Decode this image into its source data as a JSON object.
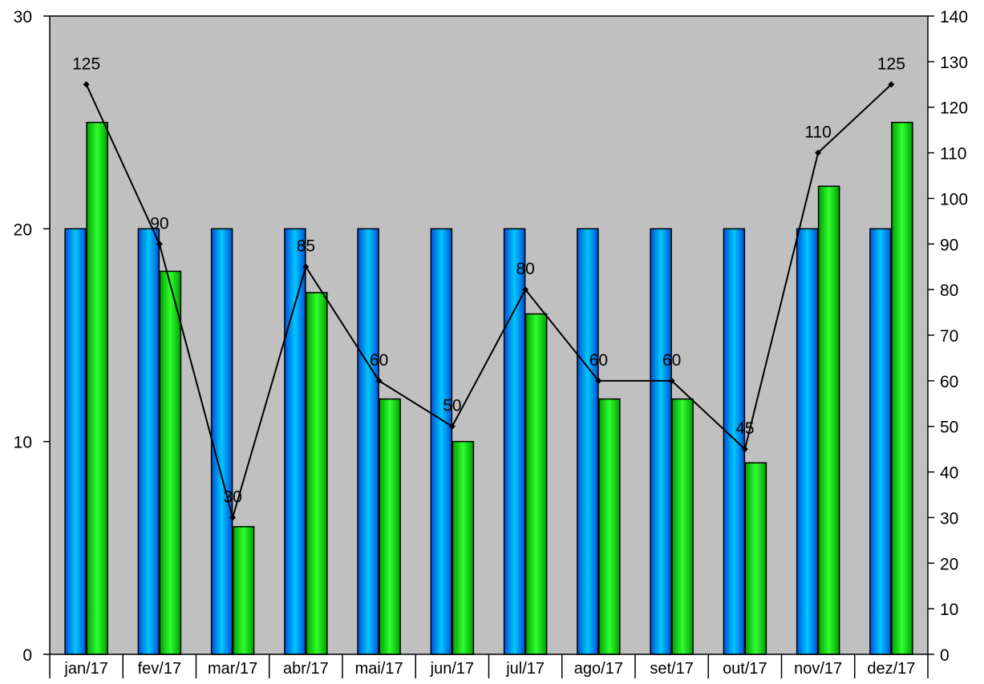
{
  "chart_data": {
    "type": "bar",
    "categories": [
      "jan/17",
      "fev/17",
      "mar/17",
      "abr/17",
      "mai/17",
      "jun/17",
      "jul/17",
      "ago/17",
      "set/17",
      "out/17",
      "nov/17",
      "dez/17"
    ],
    "series": [
      {
        "type": "bar",
        "axis": "left",
        "color": "#1e90ff",
        "values": [
          20,
          20,
          20,
          20,
          20,
          20,
          20,
          20,
          20,
          20,
          20,
          20
        ]
      },
      {
        "type": "bar",
        "axis": "left",
        "color": "#00d000",
        "values": [
          25,
          18,
          6,
          17,
          12,
          10,
          16,
          12,
          12,
          9,
          22,
          25
        ]
      },
      {
        "type": "line",
        "axis": "right",
        "color": "#000000",
        "values": [
          125,
          90,
          30,
          85,
          60,
          50,
          80,
          60,
          60,
          45,
          110,
          125
        ],
        "data_labels": [
          "125",
          "90",
          "30",
          "85",
          "60",
          "50",
          "80",
          "60",
          "60",
          "45",
          "110",
          "125"
        ]
      }
    ],
    "title": "",
    "xlabel": "",
    "ylabel": "",
    "y_left": {
      "min": 0,
      "max": 30,
      "ticks": [
        "0",
        "10",
        "20",
        "30"
      ]
    },
    "y_right": {
      "min": 0,
      "max": 140,
      "ticks": [
        "0",
        "10",
        "20",
        "30",
        "40",
        "50",
        "60",
        "70",
        "80",
        "90",
        "100",
        "110",
        "120",
        "130",
        "140"
      ]
    },
    "grid": false,
    "plot_background": "#c0c0c0",
    "legend": "none"
  }
}
